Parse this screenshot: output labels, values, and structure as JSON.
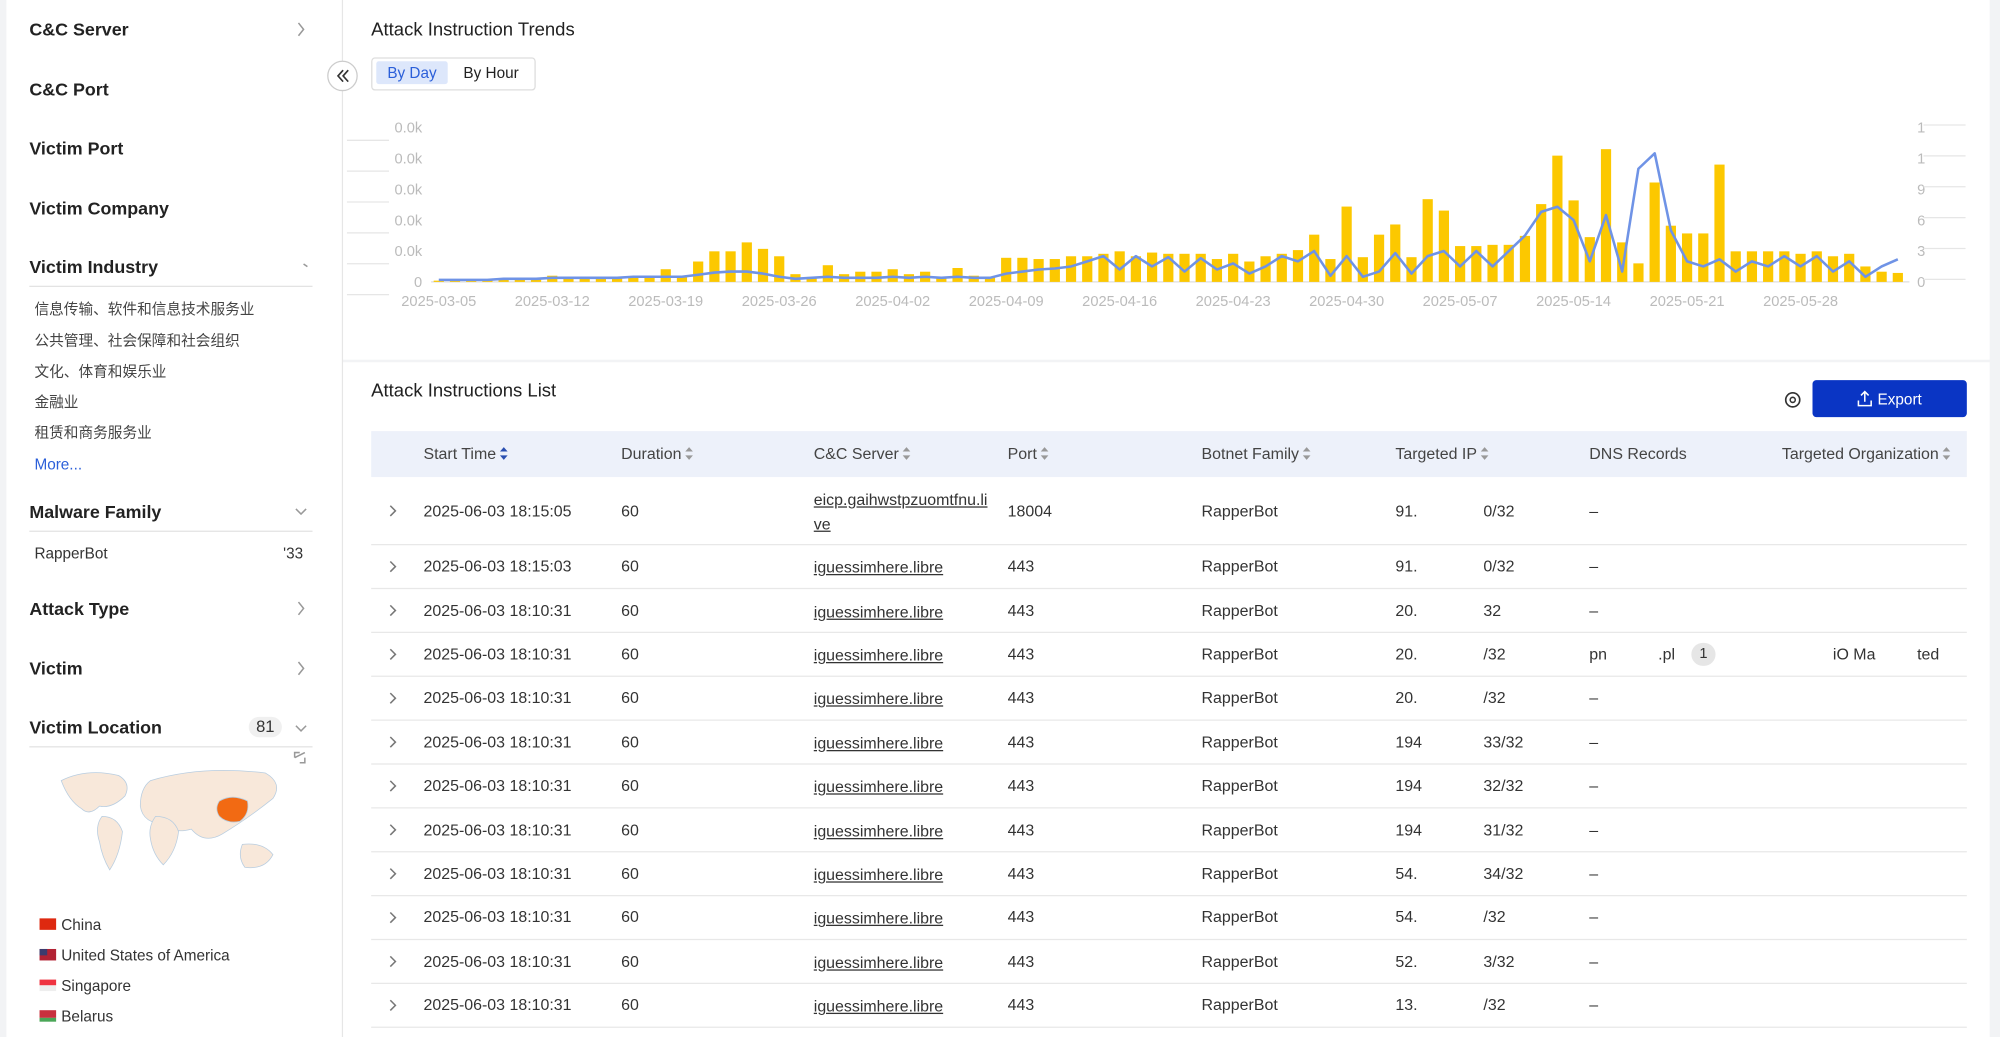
{
  "sidebar": {
    "cnc_server": "C&C Server",
    "cnc_port": "C&C Port",
    "victim_port": "Victim Port",
    "victim_company": "Victim Company",
    "victim_industry": {
      "title": "Victim Industry",
      "items": [
        "信息传输、软件和信息技术服务业",
        "公共管理、社会保障和社会组织",
        "文化、体育和娱乐业",
        "金融业",
        "租赁和商务服务业"
      ],
      "more": "More..."
    },
    "malware_family": {
      "title": "Malware Family",
      "items": [
        {
          "name": "RapperBot",
          "count": "'33"
        }
      ]
    },
    "attack_type": "Attack Type",
    "victim": "Victim",
    "victim_location": {
      "title": "Victim Location",
      "count": 81,
      "countries": [
        "China",
        "United States of America",
        "Singapore",
        "Belarus"
      ]
    }
  },
  "chart_data": {
    "type": "bar",
    "title": "Attack Instruction Trends",
    "tabs": [
      "By Day",
      "By Hour"
    ],
    "categories": [
      "2025-03-05",
      null,
      null,
      null,
      null,
      null,
      null,
      "2025-03-12",
      null,
      null,
      null,
      null,
      null,
      null,
      "2025-03-19",
      null,
      null,
      null,
      null,
      null,
      null,
      "2025-03-26",
      null,
      null,
      null,
      null,
      null,
      null,
      "2025-04-02",
      null,
      null,
      null,
      null,
      null,
      null,
      "2025-04-09",
      null,
      null,
      null,
      null,
      null,
      null,
      "2025-04-16",
      null,
      null,
      null,
      null,
      null,
      null,
      "2025-04-23",
      null,
      null,
      null,
      null,
      null,
      null,
      "2025-04-30",
      null,
      null,
      null,
      null,
      null,
      null,
      "2025-05-07",
      null,
      null,
      null,
      null,
      null,
      null,
      "2025-05-14",
      null,
      null,
      null,
      null,
      null,
      null,
      "2025-05-21",
      null,
      null,
      null,
      null,
      null,
      null,
      "2025-05-28",
      null,
      null,
      null,
      null,
      null,
      null
    ],
    "series": [
      {
        "color": "#fcc800",
        "values": [
          400,
          400,
          800,
          800,
          800,
          1200,
          1200,
          2000,
          1600,
          1600,
          1200,
          1600,
          1600,
          2000,
          4100,
          1600,
          6600,
          9900,
          9900,
          12800,
          10700,
          8300,
          2500,
          1600,
          5400,
          2500,
          3300,
          3300,
          4100,
          2500,
          3300,
          1600,
          4500,
          2000,
          1600,
          7800,
          7800,
          7400,
          7400,
          8300,
          8300,
          9100,
          9900,
          8300,
          9500,
          9100,
          9100,
          9100,
          7400,
          9100,
          6600,
          8300,
          9100,
          10300,
          15300,
          7400,
          24400,
          8000,
          15300,
          18600,
          8000,
          26800,
          23100,
          11600,
          11600,
          12000,
          12000,
          14900,
          25200,
          40900,
          26400,
          14500,
          43000,
          12800,
          6000,
          32200,
          18200,
          15700,
          15700,
          38000,
          9900,
          9900,
          9900,
          9900,
          9100,
          9900,
          8300,
          9100,
          5000,
          3300,
          2900
        ]
      },
      {
        "color": "#6f93e6",
        "type": "line",
        "axis": "y2",
        "values": [
          0.2,
          0.2,
          0.2,
          0.2,
          0.3,
          0.3,
          0.3,
          0.4,
          0.4,
          0.4,
          0.4,
          0.4,
          0.5,
          0.5,
          0.5,
          0.5,
          0.7,
          0.9,
          1,
          1,
          0.8,
          0.5,
          0.3,
          0.4,
          0.5,
          0.4,
          0.4,
          0.4,
          0.5,
          0.4,
          0.5,
          0.4,
          0.5,
          0.4,
          0.4,
          0.8,
          1,
          1.2,
          1.3,
          1.5,
          2,
          2.5,
          1.2,
          2.5,
          1.5,
          2.4,
          1,
          2.3,
          1.2,
          1.8,
          0.8,
          1.5,
          2.5,
          2,
          3,
          0.6,
          2.5,
          0.5,
          1,
          2.8,
          0.8,
          2.5,
          3,
          1.5,
          3,
          1.5,
          3,
          4.5,
          6.8,
          7.3,
          6,
          2,
          6.5,
          1,
          11,
          12.5,
          5,
          2,
          1.5,
          2.2,
          1,
          2,
          1.5,
          2.5,
          1.5,
          2.5,
          1,
          2,
          0.5,
          1.5,
          2.2
        ]
      }
    ],
    "ylim": [
      0,
      50000
    ],
    "yticks": [
      0,
      {
        "value": 10000,
        "label": "0.0k"
      },
      {
        "value": 20000,
        "label": "0.0k"
      },
      {
        "value": 30000,
        "label": "0.0k"
      },
      {
        "value": 40000,
        "label": "0.0k"
      },
      {
        "value": 50000,
        "label": "0.0k"
      }
    ],
    "y2lim": [
      0,
      15
    ],
    "y2ticks": [
      0,
      3,
      6,
      9,
      {
        "value": 12,
        "label": "1"
      },
      {
        "value": 15,
        "label": "1"
      }
    ]
  },
  "list": {
    "title": "Attack Instructions List",
    "export": "Export",
    "columns": [
      "Start Time",
      "Duration",
      "C&C Server",
      "Port",
      "Botnet Family",
      "Targeted IP",
      "DNS Records",
      "Targeted Organization"
    ],
    "rows": [
      {
        "start_time": "2025-06-03 18:15:05",
        "duration": 60,
        "cnc_server": "eicp.gaihwstpzuomtfnu.live",
        "port": 18004,
        "family": "RapperBot",
        "ip": [
          "91.",
          "0/32"
        ],
        "dns": "–"
      },
      {
        "start_time": "2025-06-03 18:15:03",
        "duration": 60,
        "cnc_server": "iguessimhere.libre",
        "port": 443,
        "family": "RapperBot",
        "ip": [
          "91.",
          "0/32"
        ],
        "dns": "–"
      },
      {
        "start_time": "2025-06-03 18:10:31",
        "duration": 60,
        "cnc_server": "iguessimhere.libre",
        "port": 443,
        "family": "RapperBot",
        "ip": [
          "20.",
          "32"
        ],
        "dns": "–"
      },
      {
        "start_time": "2025-06-03 18:10:31",
        "duration": 60,
        "cnc_server": "iguessimhere.libre",
        "port": 443,
        "family": "RapperBot",
        "ip": [
          "20.",
          "/32"
        ],
        "dns": [
          "pn",
          ".pl"
        ],
        "dns_count": 1,
        "org": [
          "iO Ma",
          "ted"
        ]
      },
      {
        "start_time": "2025-06-03 18:10:31",
        "duration": 60,
        "cnc_server": "iguessimhere.libre",
        "port": 443,
        "family": "RapperBot",
        "ip": [
          "20.",
          "/32"
        ],
        "dns": "–"
      },
      {
        "start_time": "2025-06-03 18:10:31",
        "duration": 60,
        "cnc_server": "iguessimhere.libre",
        "port": 443,
        "family": "RapperBot",
        "ip": [
          "194",
          "33/32"
        ],
        "dns": "–"
      },
      {
        "start_time": "2025-06-03 18:10:31",
        "duration": 60,
        "cnc_server": "iguessimhere.libre",
        "port": 443,
        "family": "RapperBot",
        "ip": [
          "194",
          "32/32"
        ],
        "dns": "–"
      },
      {
        "start_time": "2025-06-03 18:10:31",
        "duration": 60,
        "cnc_server": "iguessimhere.libre",
        "port": 443,
        "family": "RapperBot",
        "ip": [
          "194",
          "31/32"
        ],
        "dns": "–"
      },
      {
        "start_time": "2025-06-03 18:10:31",
        "duration": 60,
        "cnc_server": "iguessimhere.libre",
        "port": 443,
        "family": "RapperBot",
        "ip": [
          "54.",
          "34/32"
        ],
        "dns": "–"
      },
      {
        "start_time": "2025-06-03 18:10:31",
        "duration": 60,
        "cnc_server": "iguessimhere.libre",
        "port": 443,
        "family": "RapperBot",
        "ip": [
          "54.",
          "/32"
        ],
        "dns": "–"
      },
      {
        "start_time": "2025-06-03 18:10:31",
        "duration": 60,
        "cnc_server": "iguessimhere.libre",
        "port": 443,
        "family": "RapperBot",
        "ip": [
          "52.",
          "3/32"
        ],
        "dns": "–"
      },
      {
        "start_time": "2025-06-03 18:10:31",
        "duration": 60,
        "cnc_server": "iguessimhere.libre",
        "port": 443,
        "family": "RapperBot",
        "ip": [
          "13.",
          "/32"
        ],
        "dns": "–"
      }
    ]
  }
}
